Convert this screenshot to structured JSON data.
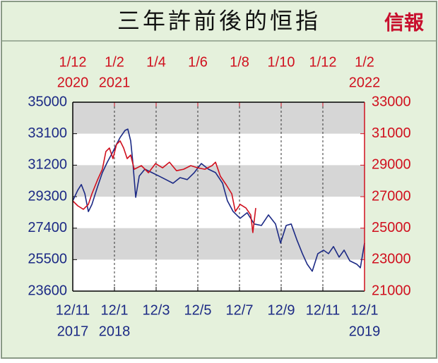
{
  "chart_data": {
    "type": "line",
    "title": "三年許前後的恒指",
    "brand": "信報",
    "grid": true,
    "xlim": [
      0,
      14
    ],
    "xticks": [
      {
        "value": 0,
        "label": "12/11",
        "year": "2017"
      },
      {
        "value": 2,
        "label": "12/1",
        "year": "2018"
      },
      {
        "value": 4,
        "label": "12/3"
      },
      {
        "value": 6,
        "label": "12/5"
      },
      {
        "value": 8,
        "label": "12/7"
      },
      {
        "value": 10,
        "label": "12/9"
      },
      {
        "value": 12,
        "label": "12/11"
      },
      {
        "value": 14,
        "label": "12/1",
        "year": "2019"
      }
    ],
    "x2lim": [
      0,
      14
    ],
    "x2ticks": [
      {
        "value": 0,
        "label": "1/12",
        "year": "2020"
      },
      {
        "value": 2,
        "label": "1/2",
        "year": "2021"
      },
      {
        "value": 4,
        "label": "1/4"
      },
      {
        "value": 6,
        "label": "1/6"
      },
      {
        "value": 8,
        "label": "1/8"
      },
      {
        "value": 10,
        "label": "1/10"
      },
      {
        "value": 12,
        "label": "1/12"
      },
      {
        "value": 14,
        "label": "1/2",
        "year": "2022"
      }
    ],
    "ylim": [
      23600,
      35000
    ],
    "yticks": [
      23600,
      25500,
      27400,
      29300,
      31200,
      33100,
      35000
    ],
    "y2lim": [
      21000,
      33000
    ],
    "y2ticks": [
      21000,
      23000,
      25000,
      27000,
      29000,
      31000,
      33000
    ],
    "series": [
      {
        "color": "#1c2a85",
        "axis": "y",
        "xaxis": "x",
        "x": [
          0,
          0.24,
          0.41,
          0.58,
          0.75,
          0.92,
          1.19,
          1.42,
          1.66,
          1.93,
          2.1,
          2.27,
          2.51,
          2.64,
          2.78,
          2.88,
          3.02,
          3.19,
          3.46,
          3.8,
          4.14,
          4.47,
          4.81,
          5.15,
          5.49,
          5.83,
          6.17,
          6.51,
          6.85,
          7.19,
          7.42,
          7.69,
          8.03,
          8.37,
          8.71,
          9.05,
          9.39,
          9.73,
          9.97,
          10.24,
          10.48,
          10.75,
          11.02,
          11.25,
          11.49,
          11.76,
          12.03,
          12.27,
          12.51,
          12.78,
          13.02,
          13.29,
          13.63,
          13.8,
          14
        ],
        "values": [
          29050,
          29690,
          30030,
          29480,
          28400,
          28830,
          29900,
          30750,
          31390,
          32020,
          32450,
          32870,
          33300,
          33380,
          32660,
          31390,
          29260,
          30540,
          30960,
          30750,
          30540,
          30330,
          30110,
          30450,
          30330,
          30750,
          31300,
          30960,
          30750,
          30110,
          29050,
          28410,
          27990,
          28330,
          27650,
          27560,
          28200,
          27650,
          26500,
          27560,
          27650,
          26710,
          25860,
          25220,
          24800,
          25860,
          26070,
          25860,
          26290,
          25650,
          26070,
          25430,
          25220,
          25010,
          26500
        ]
      },
      {
        "color": "#d0101e",
        "axis": "y2",
        "xaxis": "x2",
        "x": [
          0,
          0.24,
          0.51,
          0.75,
          0.92,
          1.19,
          1.42,
          1.59,
          1.76,
          1.93,
          2.1,
          2.27,
          2.44,
          2.61,
          2.78,
          2.95,
          3.29,
          3.63,
          3.97,
          4.31,
          4.64,
          4.98,
          5.32,
          5.66,
          6,
          6.34,
          6.68,
          6.85,
          7.08,
          7.36,
          7.63,
          7.8,
          8.03,
          8.31,
          8.54,
          8.64,
          8.78
        ],
        "values": [
          26730,
          26420,
          26200,
          26510,
          27180,
          28070,
          28740,
          29870,
          30090,
          29420,
          30320,
          30540,
          30090,
          29420,
          29640,
          28740,
          28970,
          28520,
          29100,
          28830,
          29190,
          28650,
          28740,
          28970,
          28830,
          28740,
          28970,
          29190,
          28300,
          27760,
          27180,
          26060,
          26510,
          26280,
          25840,
          24720,
          26280
        ]
      }
    ]
  }
}
